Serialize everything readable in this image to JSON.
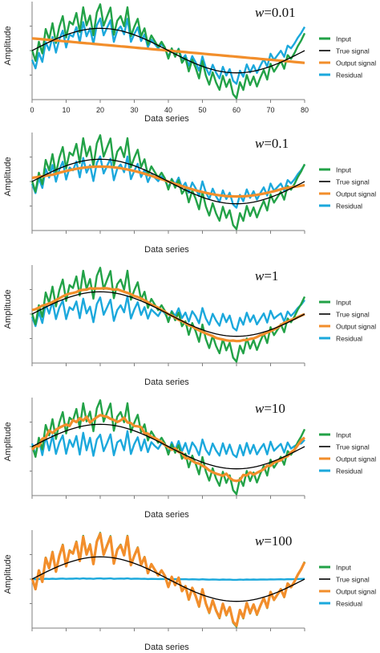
{
  "colors": {
    "input": "#22a247",
    "true_signal": "#000000",
    "output_signal": "#f28e2b",
    "residual": "#1ba8dc",
    "axis": "#7f7f7f"
  },
  "chart_data": [
    {
      "type": "line",
      "title_var": "w",
      "title_value": "=0.01",
      "xlabel": "Data series",
      "ylabel": "Amplitude",
      "xlim": [
        0,
        80
      ],
      "xticks": [
        0,
        10,
        20,
        30,
        40,
        50,
        60,
        70,
        80
      ],
      "show_xtick_labels": true,
      "legend": "right",
      "series": [
        {
          "name": "Input",
          "key": "input"
        },
        {
          "name": "True signal",
          "key": "true_signal"
        },
        {
          "name": "Output signal",
          "key": "output_signal"
        },
        {
          "name": "Residual",
          "key": "residual"
        }
      ],
      "output_mode": "smooth_trend",
      "residual_mode": "input_minus_output"
    },
    {
      "type": "line",
      "title_var": "w",
      "title_value": "=0.1",
      "xlabel": "Data series",
      "ylabel": "Amplitude",
      "xlim": [
        0,
        80
      ],
      "xticks": [
        0,
        10,
        20,
        30,
        40,
        50,
        60,
        70,
        80
      ],
      "show_xtick_labels": false,
      "legend": "right",
      "series": [
        {
          "name": "Input",
          "key": "input"
        },
        {
          "name": "True signal",
          "key": "true_signal"
        },
        {
          "name": "Output signal",
          "key": "output_signal"
        },
        {
          "name": "Residual",
          "key": "residual"
        }
      ],
      "output_mode": "smooth_low",
      "residual_mode": "input_minus_output"
    },
    {
      "type": "line",
      "title_var": "w",
      "title_value": "=1",
      "xlabel": "Data series",
      "ylabel": "Amplitude",
      "xlim": [
        0,
        80
      ],
      "xticks": [
        0,
        10,
        20,
        30,
        40,
        50,
        60,
        70,
        80
      ],
      "show_xtick_labels": false,
      "legend": "right",
      "series": [
        {
          "name": "Input",
          "key": "input"
        },
        {
          "name": "True signal",
          "key": "true_signal"
        },
        {
          "name": "Output signal",
          "key": "output_signal"
        },
        {
          "name": "Residual",
          "key": "residual"
        }
      ],
      "output_mode": "smooth_mid",
      "residual_mode": "input_minus_output"
    },
    {
      "type": "line",
      "title_var": "w",
      "title_value": "=10",
      "xlabel": "Data series",
      "ylabel": "Amplitude",
      "xlim": [
        0,
        80
      ],
      "xticks": [
        0,
        10,
        20,
        30,
        40,
        50,
        60,
        70,
        80
      ],
      "show_xtick_labels": false,
      "legend": "right",
      "series": [
        {
          "name": "Input",
          "key": "input"
        },
        {
          "name": "True signal",
          "key": "true_signal"
        },
        {
          "name": "Output signal",
          "key": "output_signal"
        },
        {
          "name": "Residual",
          "key": "residual"
        }
      ],
      "output_mode": "follow_partial",
      "residual_mode": "input_minus_output"
    },
    {
      "type": "line",
      "title_var": "w",
      "title_value": "=100",
      "xlabel": "Data series",
      "ylabel": "Amplitude",
      "xlim": [
        0,
        80
      ],
      "xticks": [
        0,
        10,
        20,
        30,
        40,
        50,
        60,
        70,
        80
      ],
      "show_xtick_labels": false,
      "legend": "right",
      "series": [
        {
          "name": "Input",
          "key": "input"
        },
        {
          "name": "True signal",
          "key": "true_signal"
        },
        {
          "name": "Output signal",
          "key": "output_signal"
        },
        {
          "name": "Residual",
          "key": "residual"
        }
      ],
      "output_mode": "follow_full",
      "residual_mode": "input_minus_output"
    }
  ],
  "signals": {
    "x_start": 0,
    "x_end": 80,
    "true_signal_amplitude": 1.0,
    "true_signal_period": 80,
    "input_noise": [
      0.05,
      -0.9,
      0.4,
      -0.6,
      1.1,
      0.2,
      1.3,
      -0.3,
      0.8,
      1.5,
      -0.2,
      0.9,
      0.6,
      1.4,
      -0.1,
      1.7,
      0.3,
      1.0,
      -0.5,
      1.2,
      1.8,
      0.2,
      0.9,
      1.6,
      -0.4,
      0.7,
      1.1,
      0.4,
      1.9,
      -0.2,
      0.6,
      1.3,
      0.1,
      0.8,
      -0.3,
      0.5,
      0.2,
      -0.1,
      0.4,
      0.1,
      -0.6,
      0.3,
      -0.2,
      0.5,
      -0.4,
      0.1,
      -0.8,
      0.2,
      -0.3,
      -1.0,
      0.4,
      -0.6,
      -1.2,
      -0.2,
      -0.9,
      -1.4,
      -0.3,
      -1.1,
      -0.5,
      -1.6,
      -1.9,
      -0.7,
      -1.3,
      -0.2,
      -1.0,
      -0.4,
      -1.2,
      -0.6,
      -0.1,
      -0.9,
      0.2,
      -0.5,
      -0.2,
      0.1,
      -0.6,
      0.3,
      -0.1,
      0.2,
      0.6,
      0.9,
      1.3
    ]
  }
}
